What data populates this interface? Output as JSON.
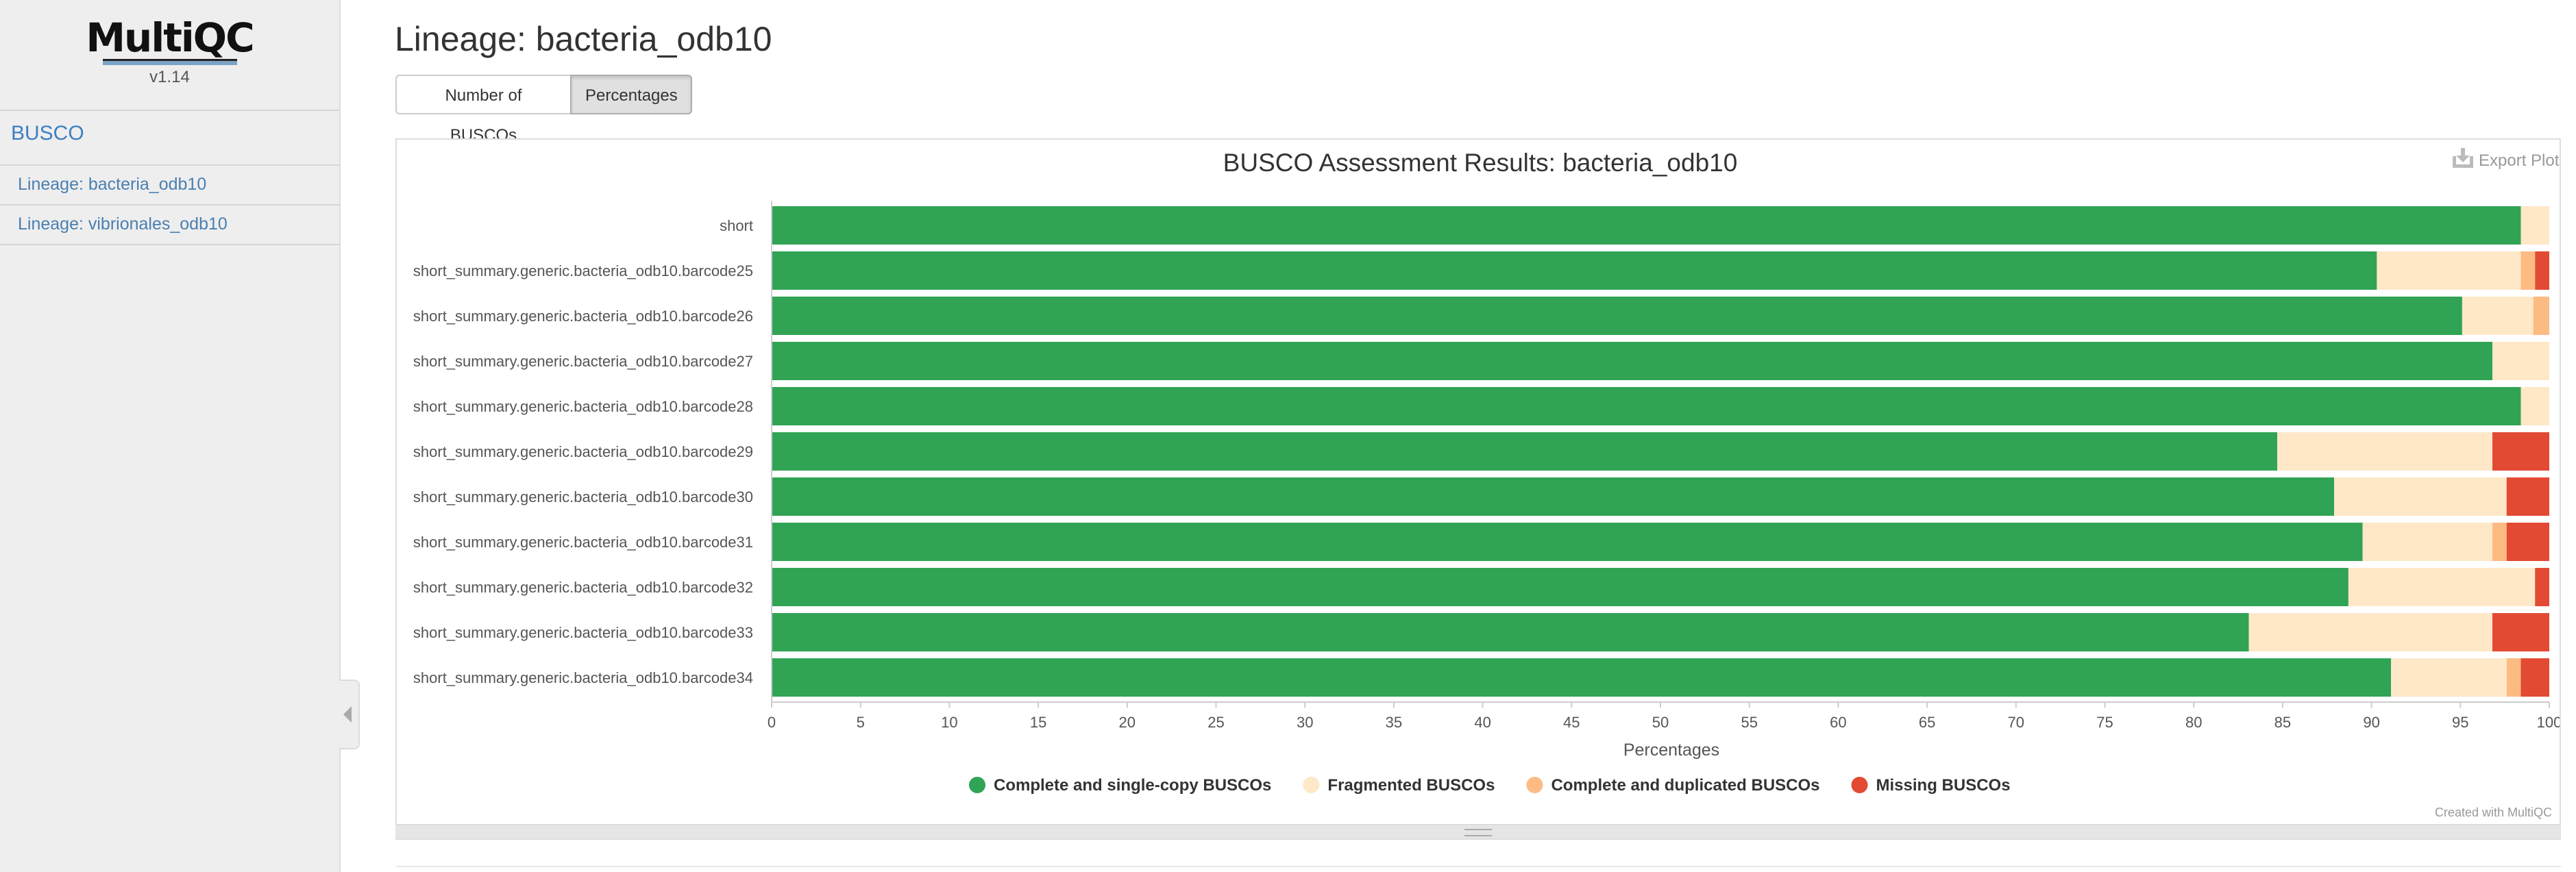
{
  "sidebar": {
    "logo_text": "MultiQC",
    "version": "v1.14",
    "section": "BUSCO",
    "items": [
      {
        "label": "Lineage: bacteria_odb10"
      },
      {
        "label": "Lineage: vibrionales_odb10"
      }
    ]
  },
  "main": {
    "title": "Lineage: bacteria_odb10",
    "buttons": [
      {
        "label": "Number of BUSCOs",
        "active": false
      },
      {
        "label": "Percentages",
        "active": true
      }
    ],
    "export_label": "Export Plot",
    "credit": "Created with MultiQC"
  },
  "chart_data": {
    "type": "bar",
    "orientation": "horizontal",
    "stacked": true,
    "title": "BUSCO Assessment Results: bacteria_odb10",
    "xlabel": "Percentages",
    "ylabel": "",
    "xlim": [
      0,
      100
    ],
    "xticks": [
      0,
      5,
      10,
      15,
      20,
      25,
      30,
      35,
      40,
      45,
      50,
      55,
      60,
      65,
      70,
      75,
      80,
      85,
      90,
      95,
      100
    ],
    "grid": false,
    "legend_position": "bottom",
    "categories": [
      "short",
      "short_summary.generic.bacteria_odb10.barcode25",
      "short_summary.generic.bacteria_odb10.barcode26",
      "short_summary.generic.bacteria_odb10.barcode27",
      "short_summary.generic.bacteria_odb10.barcode28",
      "short_summary.generic.bacteria_odb10.barcode29",
      "short_summary.generic.bacteria_odb10.barcode30",
      "short_summary.generic.bacteria_odb10.barcode31",
      "short_summary.generic.bacteria_odb10.barcode32",
      "short_summary.generic.bacteria_odb10.barcode33",
      "short_summary.generic.bacteria_odb10.barcode34"
    ],
    "series": [
      {
        "name": "Complete and single-copy BUSCOs",
        "color": "#31a354",
        "values": [
          98.4,
          90.3,
          95.1,
          96.8,
          98.4,
          84.7,
          87.9,
          89.5,
          88.7,
          83.1,
          91.1
        ]
      },
      {
        "name": "Fragmented BUSCOs",
        "color": "#fee8c8",
        "values": [
          1.6,
          8.1,
          4.0,
          3.2,
          1.6,
          12.1,
          9.7,
          7.3,
          10.5,
          13.7,
          6.5
        ]
      },
      {
        "name": "Complete and duplicated BUSCOs",
        "color": "#fdbb84",
        "values": [
          0.0,
          0.8,
          0.9,
          0.0,
          0.0,
          0.0,
          0.0,
          0.8,
          0.0,
          0.0,
          0.8
        ]
      },
      {
        "name": "Missing BUSCOs",
        "color": "#e34a33",
        "values": [
          0.0,
          0.8,
          0.0,
          0.0,
          0.0,
          3.2,
          2.4,
          2.4,
          0.8,
          3.2,
          1.6
        ]
      }
    ]
  }
}
